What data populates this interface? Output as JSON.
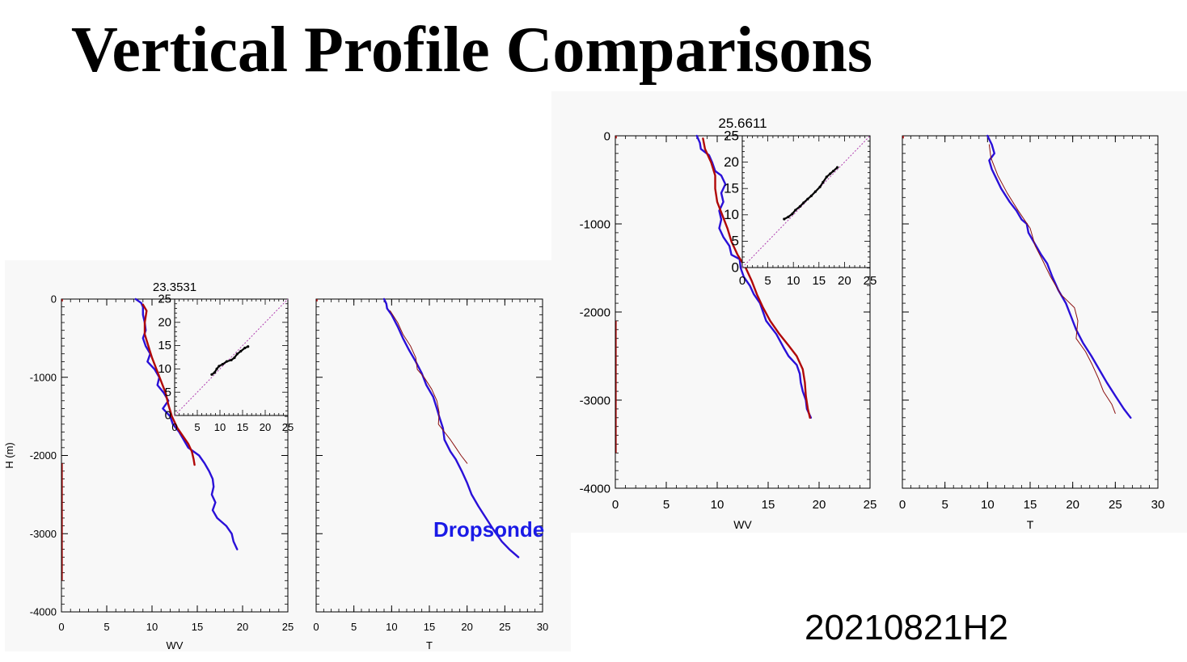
{
  "slide": {
    "title": "Vertical Profile Comparisons",
    "date_label": "20210821H2",
    "legend_label": "Dropsonde"
  },
  "colors": {
    "dropsonde": "#2a10d8",
    "model": "#b00808",
    "model_thin": "#8a1010",
    "scatter": "#000000",
    "diagonal": "#b040b0",
    "panel_bg": "#f8f8f8"
  },
  "chart_data": [
    {
      "type": "line",
      "title": "23.3531",
      "subplot": "WV",
      "xlabel": "WV",
      "ylabel": "H (m)",
      "xlim": [
        0,
        25
      ],
      "ylim": [
        -4000,
        0
      ],
      "xticks": [
        "0",
        "5",
        "10",
        "15",
        "20",
        "25"
      ],
      "yticks": [
        "0",
        "-1000",
        "-2000",
        "-3000",
        "-4000"
      ],
      "series": [
        {
          "role": "dropsonde",
          "points": [
            [
              8.2,
              0
            ],
            [
              8.8,
              -50
            ],
            [
              9.0,
              -100
            ],
            [
              9.0,
              -200
            ],
            [
              9.2,
              -300
            ],
            [
              9.3,
              -400
            ],
            [
              9.0,
              -500
            ],
            [
              9.3,
              -600
            ],
            [
              9.8,
              -700
            ],
            [
              9.5,
              -800
            ],
            [
              10.3,
              -900
            ],
            [
              10.8,
              -1000
            ],
            [
              10.6,
              -1100
            ],
            [
              11.3,
              -1200
            ],
            [
              11.8,
              -1300
            ],
            [
              11.2,
              -1400
            ],
            [
              12.0,
              -1500
            ],
            [
              12.3,
              -1600
            ],
            [
              13.0,
              -1700
            ],
            [
              13.5,
              -1800
            ],
            [
              14.0,
              -1900
            ],
            [
              15.2,
              -2000
            ],
            [
              15.8,
              -2100
            ],
            [
              16.3,
              -2200
            ],
            [
              16.7,
              -2300
            ],
            [
              16.8,
              -2400
            ],
            [
              16.6,
              -2500
            ],
            [
              17.0,
              -2600
            ],
            [
              16.7,
              -2700
            ],
            [
              17.2,
              -2800
            ],
            [
              18.2,
              -2900
            ],
            [
              18.8,
              -3000
            ],
            [
              19.0,
              -3100
            ],
            [
              19.4,
              -3200
            ]
          ]
        },
        {
          "role": "model",
          "points": [
            [
              9.0,
              -70
            ],
            [
              9.4,
              -150
            ],
            [
              9.2,
              -300
            ],
            [
              9.2,
              -450
            ],
            [
              9.6,
              -600
            ],
            [
              10.0,
              -750
            ],
            [
              10.5,
              -900
            ],
            [
              11.0,
              -1050
            ],
            [
              11.5,
              -1200
            ],
            [
              11.8,
              -1350
            ],
            [
              12.2,
              -1500
            ],
            [
              12.8,
              -1650
            ],
            [
              13.4,
              -1750
            ],
            [
              14.0,
              -1850
            ],
            [
              14.4,
              -1950
            ],
            [
              14.6,
              -2050
            ],
            [
              14.7,
              -2120
            ]
          ]
        }
      ],
      "inset": {
        "xlim": [
          0,
          25
        ],
        "ylim": [
          0,
          25
        ],
        "xticks": [
          "0",
          "5",
          "10",
          "15",
          "20",
          "25"
        ],
        "yticks": [
          "0",
          "5",
          "10",
          "15",
          "20",
          "25"
        ],
        "scatter": [
          [
            8.2,
            8.8
          ],
          [
            8.8,
            9.2
          ],
          [
            9.3,
            10.0
          ],
          [
            9.8,
            10.6
          ],
          [
            10.6,
            11.0
          ],
          [
            11.5,
            11.6
          ],
          [
            12.5,
            11.9
          ],
          [
            13.2,
            12.4
          ],
          [
            13.8,
            13.2
          ],
          [
            14.6,
            13.8
          ],
          [
            15.5,
            14.5
          ],
          [
            16.2,
            14.8
          ]
        ]
      }
    },
    {
      "type": "line",
      "subplot": "T",
      "xlabel": "T",
      "xlim": [
        0,
        30
      ],
      "ylim": [
        -4000,
        0
      ],
      "xticks": [
        "0",
        "5",
        "10",
        "15",
        "20",
        "25",
        "30"
      ],
      "series": [
        {
          "role": "dropsonde",
          "points": [
            [
              9.0,
              0
            ],
            [
              9.3,
              -60
            ],
            [
              9.4,
              -120
            ],
            [
              10.0,
              -200
            ],
            [
              10.8,
              -350
            ],
            [
              11.5,
              -500
            ],
            [
              12.3,
              -650
            ],
            [
              13.2,
              -800
            ],
            [
              14.0,
              -950
            ],
            [
              14.6,
              -1100
            ],
            [
              15.5,
              -1250
            ],
            [
              16.0,
              -1400
            ],
            [
              16.3,
              -1500
            ],
            [
              16.8,
              -1650
            ],
            [
              17.0,
              -1800
            ],
            [
              17.8,
              -1950
            ],
            [
              18.5,
              -2050
            ],
            [
              19.3,
              -2200
            ],
            [
              20.0,
              -2350
            ],
            [
              20.6,
              -2500
            ],
            [
              21.5,
              -2650
            ],
            [
              22.5,
              -2800
            ],
            [
              23.5,
              -2950
            ],
            [
              24.6,
              -3100
            ],
            [
              25.6,
              -3200
            ],
            [
              26.8,
              -3300
            ]
          ]
        },
        {
          "role": "model",
          "points": [
            [
              9.8,
              -150
            ],
            [
              10.8,
              -300
            ],
            [
              11.5,
              -450
            ],
            [
              12.5,
              -600
            ],
            [
              13.2,
              -750
            ],
            [
              13.4,
              -900
            ],
            [
              14.3,
              -1000
            ],
            [
              15.3,
              -1150
            ],
            [
              16.0,
              -1300
            ],
            [
              16.3,
              -1450
            ],
            [
              16.2,
              -1600
            ],
            [
              17.0,
              -1700
            ],
            [
              17.8,
              -1800
            ],
            [
              18.5,
              -1900
            ],
            [
              19.2,
              -2000
            ],
            [
              20.0,
              -2100
            ]
          ]
        }
      ]
    },
    {
      "type": "line",
      "title": "25.6611",
      "subplot": "WV",
      "xlabel": "WV",
      "xlim": [
        0,
        25
      ],
      "ylim": [
        -4000,
        0
      ],
      "xticks": [
        "0",
        "5",
        "10",
        "15",
        "20",
        "25"
      ],
      "yticks": [
        "0",
        "-1000",
        "-2000",
        "-3000",
        "-4000"
      ],
      "series": [
        {
          "role": "dropsonde",
          "points": [
            [
              8.0,
              0
            ],
            [
              8.3,
              -80
            ],
            [
              8.4,
              -150
            ],
            [
              9.2,
              -220
            ],
            [
              9.5,
              -300
            ],
            [
              9.8,
              -400
            ],
            [
              10.4,
              -450
            ],
            [
              10.8,
              -550
            ],
            [
              10.4,
              -650
            ],
            [
              10.6,
              -750
            ],
            [
              10.2,
              -850
            ],
            [
              10.4,
              -950
            ],
            [
              10.2,
              -1050
            ],
            [
              10.6,
              -1150
            ],
            [
              11.2,
              -1250
            ],
            [
              11.4,
              -1350
            ],
            [
              12.2,
              -1400
            ],
            [
              12.3,
              -1500
            ],
            [
              12.6,
              -1600
            ],
            [
              13.2,
              -1700
            ],
            [
              13.6,
              -1800
            ],
            [
              14.2,
              -1900
            ],
            [
              14.8,
              -2100
            ],
            [
              15.8,
              -2250
            ],
            [
              16.5,
              -2400
            ],
            [
              17.0,
              -2500
            ],
            [
              17.8,
              -2600
            ],
            [
              18.1,
              -2700
            ],
            [
              18.2,
              -2800
            ],
            [
              18.4,
              -2900
            ],
            [
              18.7,
              -3000
            ],
            [
              18.8,
              -3100
            ],
            [
              19.2,
              -3200
            ]
          ]
        },
        {
          "role": "model",
          "points": [
            [
              8.6,
              -30
            ],
            [
              8.8,
              -150
            ],
            [
              9.4,
              -300
            ],
            [
              9.8,
              -450
            ],
            [
              9.8,
              -600
            ],
            [
              10.0,
              -750
            ],
            [
              10.5,
              -900
            ],
            [
              11.0,
              -1050
            ],
            [
              11.4,
              -1200
            ],
            [
              12.0,
              -1350
            ],
            [
              12.8,
              -1500
            ],
            [
              13.4,
              -1650
            ],
            [
              13.9,
              -1800
            ],
            [
              14.5,
              -1950
            ],
            [
              15.2,
              -2100
            ],
            [
              16.1,
              -2250
            ],
            [
              17.0,
              -2380
            ],
            [
              17.8,
              -2500
            ],
            [
              18.4,
              -2650
            ],
            [
              18.6,
              -2800
            ],
            [
              18.7,
              -2950
            ],
            [
              18.9,
              -3100
            ],
            [
              19.1,
              -3200
            ]
          ]
        }
      ],
      "inset": {
        "xlim": [
          0,
          25
        ],
        "ylim": [
          0,
          25
        ],
        "xticks": [
          "0",
          "5",
          "10",
          "15",
          "20",
          "25"
        ],
        "yticks": [
          "0",
          "5",
          "10",
          "15",
          "20",
          "25"
        ],
        "scatter": [
          [
            8.2,
            9.2
          ],
          [
            9.0,
            9.6
          ],
          [
            9.8,
            10.2
          ],
          [
            10.4,
            10.9
          ],
          [
            11.3,
            11.6
          ],
          [
            12.0,
            12.3
          ],
          [
            12.8,
            13.0
          ],
          [
            13.5,
            13.6
          ],
          [
            14.3,
            14.4
          ],
          [
            15.2,
            15.3
          ],
          [
            15.8,
            16.2
          ],
          [
            16.5,
            17.2
          ],
          [
            17.2,
            17.8
          ],
          [
            17.8,
            18.3
          ],
          [
            18.6,
            19.0
          ]
        ]
      }
    },
    {
      "type": "line",
      "subplot": "T",
      "xlabel": "T",
      "xlim": [
        0,
        30
      ],
      "ylim": [
        -4000,
        0
      ],
      "xticks": [
        "0",
        "5",
        "10",
        "15",
        "20",
        "25",
        "30"
      ],
      "series": [
        {
          "role": "dropsonde",
          "points": [
            [
              10.0,
              0
            ],
            [
              10.5,
              -100
            ],
            [
              10.8,
              -200
            ],
            [
              10.2,
              -280
            ],
            [
              10.5,
              -380
            ],
            [
              11.0,
              -480
            ],
            [
              11.6,
              -600
            ],
            [
              12.6,
              -750
            ],
            [
              13.4,
              -850
            ],
            [
              14.0,
              -950
            ],
            [
              14.6,
              -1000
            ],
            [
              14.8,
              -1100
            ],
            [
              15.4,
              -1200
            ],
            [
              16.3,
              -1350
            ],
            [
              17.0,
              -1450
            ],
            [
              17.6,
              -1600
            ],
            [
              18.3,
              -1750
            ],
            [
              19.2,
              -1900
            ],
            [
              19.8,
              -2050
            ],
            [
              20.4,
              -2200
            ],
            [
              21.2,
              -2350
            ],
            [
              22.2,
              -2500
            ],
            [
              23.1,
              -2650
            ],
            [
              24.0,
              -2800
            ],
            [
              25.0,
              -2950
            ],
            [
              26.0,
              -3100
            ],
            [
              26.8,
              -3200
            ]
          ]
        },
        {
          "role": "model",
          "points": [
            [
              10.2,
              -100
            ],
            [
              10.4,
              -250
            ],
            [
              11.2,
              -450
            ],
            [
              12.3,
              -650
            ],
            [
              13.6,
              -850
            ],
            [
              15.0,
              -1050
            ],
            [
              15.6,
              -1250
            ],
            [
              16.4,
              -1400
            ],
            [
              17.4,
              -1600
            ],
            [
              18.6,
              -1800
            ],
            [
              20.2,
              -1950
            ],
            [
              20.6,
              -2100
            ],
            [
              20.4,
              -2300
            ],
            [
              21.5,
              -2450
            ],
            [
              22.3,
              -2600
            ],
            [
              23.0,
              -2750
            ],
            [
              23.6,
              -2900
            ],
            [
              24.6,
              -3050
            ],
            [
              25.0,
              -3150
            ]
          ]
        }
      ]
    }
  ]
}
